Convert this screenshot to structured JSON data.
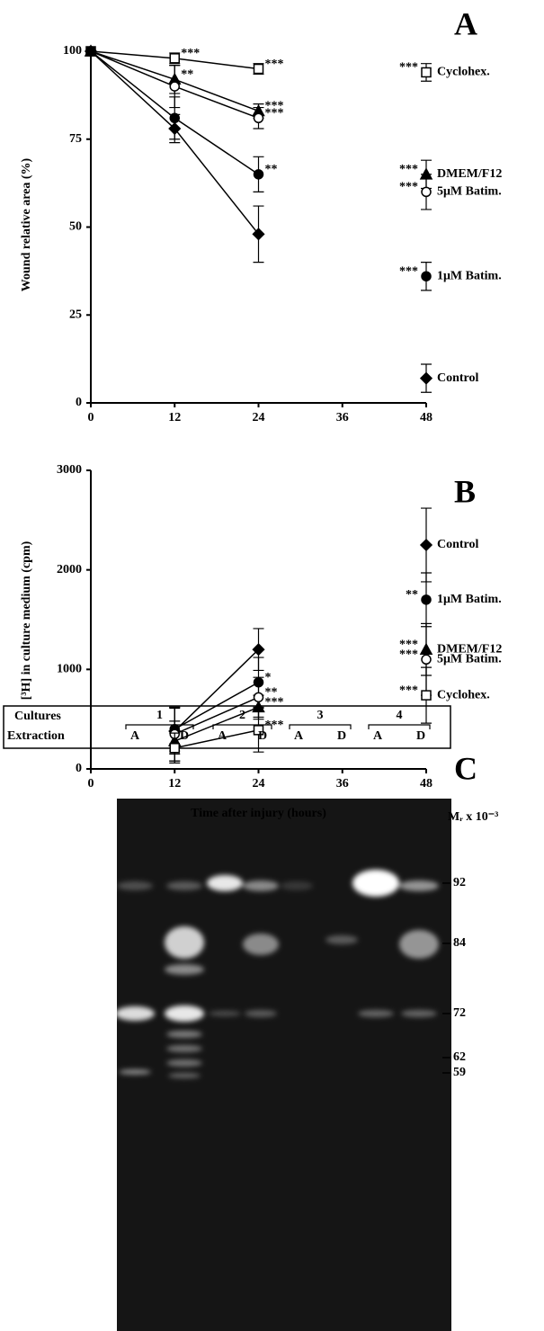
{
  "chart_data": [
    {
      "type": "line",
      "label": "A",
      "y_title": "Wound relative area (%)",
      "x": [
        0,
        12,
        24,
        36,
        48
      ],
      "xlim": [
        0,
        48
      ],
      "xticks": [
        0,
        12,
        24,
        36,
        48
      ],
      "ylim": [
        0,
        100
      ],
      "yticks": [
        0,
        25,
        50,
        75,
        100
      ],
      "series": [
        {
          "name": "Cyclohex.",
          "marker": "square-open",
          "color": "#000000",
          "values": [
            100,
            98,
            95,
            null,
            94
          ],
          "errors": [
            null,
            1.5,
            1.5,
            null,
            2.5
          ],
          "significance": [
            null,
            "***",
            "***",
            null,
            "***"
          ]
        },
        {
          "name": "DMEM/F12",
          "marker": "triangle",
          "color": "#000000",
          "values": [
            100,
            92,
            83,
            null,
            65
          ],
          "errors": [
            null,
            4,
            2,
            null,
            4
          ],
          "significance": [
            null,
            "**",
            "***",
            null,
            "***"
          ]
        },
        {
          "name": "5μM Batim.",
          "marker": "circle-open",
          "color": "#000000",
          "values": [
            100,
            90,
            81,
            null,
            60
          ],
          "errors": [
            null,
            6,
            3,
            null,
            5
          ],
          "significance": [
            null,
            null,
            "***",
            null,
            "***"
          ]
        },
        {
          "name": "1μM Batim.",
          "marker": "circle",
          "color": "#000000",
          "values": [
            100,
            81,
            65,
            null,
            36
          ],
          "errors": [
            null,
            6,
            5,
            null,
            4
          ],
          "significance": [
            null,
            null,
            "**",
            null,
            "***"
          ]
        },
        {
          "name": "Control",
          "marker": "diamond",
          "color": "#000000",
          "values": [
            100,
            78,
            48,
            null,
            7
          ],
          "errors": [
            null,
            4,
            8,
            null,
            4
          ],
          "significance": [
            null,
            null,
            null,
            null,
            null
          ]
        }
      ]
    },
    {
      "type": "line",
      "label": "B",
      "y_title": "[³H] in culture medium (cpm)",
      "x_title": "Time after injury (hours)",
      "x": [
        0,
        12,
        24,
        36,
        48
      ],
      "xlim": [
        0,
        48
      ],
      "xticks": [
        0,
        12,
        24,
        36,
        48
      ],
      "ylim": [
        0,
        3000
      ],
      "yticks": [
        0,
        1000,
        2000,
        3000
      ],
      "series": [
        {
          "name": "Control",
          "marker": "diamond",
          "color": "#000000",
          "values": [
            null,
            380,
            1200,
            null,
            2250
          ],
          "errors": [
            null,
            230,
            210,
            null,
            370
          ],
          "significance": [
            null,
            null,
            null,
            null,
            null
          ]
        },
        {
          "name": "1μM Batim.",
          "marker": "circle",
          "color": "#000000",
          "values": [
            null,
            400,
            870,
            null,
            1700
          ],
          "errors": [
            null,
            220,
            250,
            null,
            270
          ],
          "significance": [
            null,
            null,
            "*",
            null,
            "**"
          ]
        },
        {
          "name": "DMEM/F12",
          "marker": "triangle",
          "color": "#000000",
          "values": [
            null,
            280,
            620,
            null,
            1200
          ],
          "errors": [
            null,
            200,
            120,
            null,
            260
          ],
          "significance": [
            null,
            null,
            "***",
            null,
            "***"
          ]
        },
        {
          "name": "5μM Batim.",
          "marker": "circle-open",
          "color": "#000000",
          "values": [
            null,
            350,
            720,
            null,
            1100
          ],
          "errors": [
            null,
            270,
            200,
            null,
            360
          ],
          "significance": [
            null,
            null,
            "**",
            null,
            "***"
          ]
        },
        {
          "name": "Cyclohex.",
          "marker": "square-open",
          "color": "#000000",
          "values": [
            null,
            210,
            390,
            null,
            740
          ],
          "errors": [
            null,
            150,
            220,
            null,
            280
          ],
          "significance": [
            null,
            null,
            "***",
            null,
            "***"
          ]
        }
      ]
    }
  ],
  "gel": {
    "label": "C",
    "cultures_label": "Cultures",
    "extraction_label": "Extraction",
    "cultures": [
      "1",
      "2",
      "3",
      "4"
    ],
    "lanes": [
      "A",
      "D",
      "A",
      "D",
      "A",
      "D",
      "A",
      "D"
    ],
    "mr_label": "Mᵣ x 10⁻³",
    "markers": [
      "92",
      "84",
      "72",
      "62",
      "59"
    ]
  }
}
